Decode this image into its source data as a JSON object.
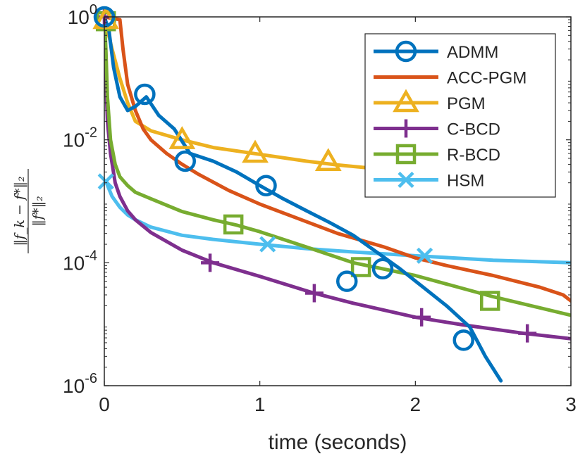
{
  "chart_data": {
    "type": "line",
    "title": "",
    "xlabel": "time (seconds)",
    "ylabel": "‖f_k − f*‖₂ / ‖f*‖₂",
    "ylabel_numerator": "‖f_k − f*‖₂",
    "ylabel_denominator": "‖f*‖₂",
    "xlim": [
      0,
      3
    ],
    "ylim": [
      1e-06,
      1
    ],
    "yscale": "log",
    "x_ticks": [
      0,
      1,
      2,
      3
    ],
    "x_tick_labels": [
      "0",
      "1",
      "2",
      "3"
    ],
    "y_ticks": [
      1,
      0.01,
      0.0001,
      1e-06
    ],
    "y_tick_base": "10",
    "y_tick_exponents": [
      "0",
      "-2",
      "-4",
      "-6"
    ],
    "grid": false,
    "legend_position": "top-right",
    "series": [
      {
        "name": "ADMM",
        "color": "#0072BD",
        "marker": "circle",
        "x": [
          0,
          0.03,
          0.06,
          0.1,
          0.15,
          0.2,
          0.27,
          0.35,
          0.45,
          0.55,
          0.7,
          0.85,
          1.0,
          1.15,
          1.3,
          1.45,
          1.6,
          1.75,
          1.9,
          2.05,
          2.2,
          2.35,
          2.45,
          2.55
        ],
        "y": [
          1,
          0.6,
          0.15,
          0.05,
          0.03,
          0.035,
          0.05,
          0.025,
          0.015,
          0.006,
          0.0045,
          0.003,
          0.0018,
          0.0011,
          0.0007,
          0.00045,
          0.00028,
          0.00015,
          8e-05,
          4e-05,
          2e-05,
          9e-06,
          3e-06,
          1.2e-06
        ],
        "markers_x": [
          0,
          0.26,
          0.52,
          1.04,
          1.56,
          1.79,
          2.31
        ],
        "markers_y": [
          1,
          0.055,
          0.0045,
          0.0018,
          5e-05,
          8e-05,
          5.5e-06
        ]
      },
      {
        "name": "ACC-PGM",
        "color": "#D95319",
        "marker": "none",
        "x": [
          0,
          0.1,
          0.12,
          0.15,
          0.2,
          0.25,
          0.3,
          0.4,
          0.5,
          0.6,
          0.8,
          1.0,
          1.2,
          1.5,
          1.8,
          2.0,
          2.2,
          2.5,
          2.8,
          2.95,
          3.0
        ],
        "y": [
          1,
          0.9,
          0.3,
          0.08,
          0.03,
          0.015,
          0.01,
          0.006,
          0.004,
          0.0028,
          0.0015,
          0.0009,
          0.00058,
          0.0003,
          0.00018,
          0.00012,
          9e-05,
          6.2e-05,
          4e-05,
          3e-05,
          2.4e-05
        ]
      },
      {
        "name": "PGM",
        "color": "#EDB120",
        "marker": "triangle",
        "x": [
          0,
          0.05,
          0.1,
          0.15,
          0.2,
          0.3,
          0.5,
          0.7,
          1.0,
          1.3,
          1.5,
          1.8,
          2.0
        ],
        "y": [
          1,
          0.3,
          0.1,
          0.04,
          0.02,
          0.014,
          0.01,
          0.0075,
          0.0058,
          0.0045,
          0.0039,
          0.0033,
          0.003
        ],
        "markers_x": [
          0.01,
          0.5,
          0.97,
          1.44
        ],
        "markers_y": [
          0.9,
          0.01,
          0.006,
          0.0044
        ]
      },
      {
        "name": "C-BCD",
        "color": "#7E2F8E",
        "marker": "plus",
        "x": [
          0,
          0.01,
          0.02,
          0.04,
          0.07,
          0.1,
          0.15,
          0.2,
          0.3,
          0.5,
          0.7,
          1.0,
          1.35,
          1.6,
          2.0,
          2.3,
          2.7,
          3.0
        ],
        "y": [
          1,
          0.1,
          0.02,
          0.006,
          0.002,
          0.0012,
          0.0007,
          0.0005,
          0.00031,
          0.00016,
          0.0001,
          6e-05,
          3.2e-05,
          2.2e-05,
          1.3e-05,
          9.8e-06,
          7.1e-06,
          5.8e-06
        ],
        "markers_x": [
          0,
          0.68,
          1.35,
          2.04,
          2.72
        ],
        "markers_y": [
          1,
          0.0001,
          3.2e-05,
          1.3e-05,
          7.1e-06
        ]
      },
      {
        "name": "R-BCD",
        "color": "#77AC30",
        "marker": "square",
        "x": [
          0,
          0.01,
          0.02,
          0.04,
          0.07,
          0.1,
          0.15,
          0.2,
          0.3,
          0.5,
          0.7,
          0.85,
          1.0,
          1.3,
          1.6,
          2.0,
          2.5,
          3.0
        ],
        "y": [
          1,
          0.3,
          0.05,
          0.01,
          0.004,
          0.0025,
          0.0018,
          0.0014,
          0.0011,
          0.00068,
          0.0005,
          0.00041,
          0.00032,
          0.00018,
          0.0001,
          6.2e-05,
          2.8e-05,
          1.4e-05
        ],
        "markers_x": [
          0.01,
          0.83,
          1.65,
          2.48
        ],
        "markers_y": [
          0.85,
          0.00042,
          8.5e-05,
          2.4e-05
        ]
      },
      {
        "name": "HSM",
        "color": "#4DBEEE",
        "marker": "x",
        "x": [
          0.01,
          0.05,
          0.1,
          0.15,
          0.2,
          0.3,
          0.5,
          0.7,
          1.0,
          1.3,
          1.6,
          2.0,
          2.5,
          3.0
        ],
        "y": [
          0.0021,
          0.0012,
          0.0008,
          0.0006,
          0.0005,
          0.00038,
          0.00028,
          0.00024,
          0.0002,
          0.00017,
          0.00015,
          0.00013,
          0.00011,
          0.0001
        ],
        "markers_x": [
          0.01,
          1.05,
          2.06
        ],
        "markers_y": [
          0.0021,
          0.0002,
          0.00013
        ]
      }
    ]
  }
}
